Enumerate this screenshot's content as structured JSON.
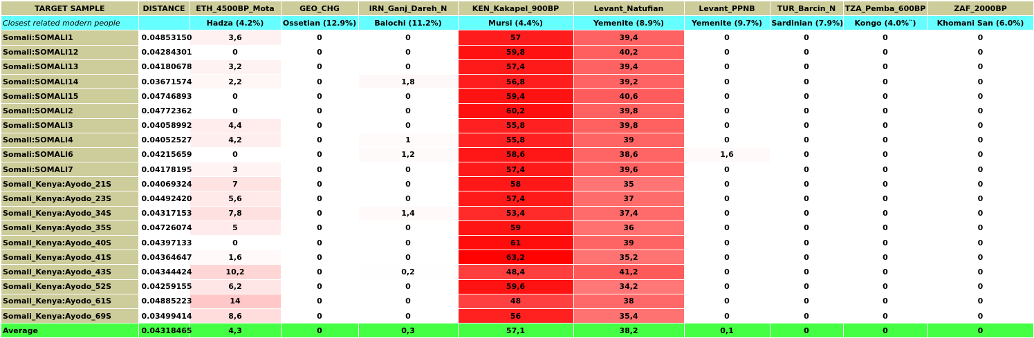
{
  "chart_data": {
    "type": "table",
    "columns": [
      "TARGET SAMPLE",
      "DISTANCE",
      "ETH_4500BP_Mota",
      "GEO_CHG",
      "IRN_Ganj_Dareh_N",
      "KEN_Kakapel_900BP",
      "Levant_Natufian",
      "Levant_PPNB",
      "TUR_Barcin_N",
      "TZA_Pemba_600BP",
      "ZAF_2000BP"
    ],
    "closest_label": "Closest related modern people",
    "closest": [
      "Hadza (4.2%)",
      "Ossetian (12.9%)",
      "Balochi (11.2%)",
      "Mursi (4.4%)",
      "Yemenite (8.9%)",
      "Yemenite (9.7%)",
      "Sardinian (7.9%)",
      "Kongo (4.0%¨)",
      "Khomani San (6.0%)"
    ],
    "rows": [
      {
        "sample": "Somali:SOMALI1",
        "distance": "0.04853150",
        "values": [
          "3,6",
          "0",
          "0",
          "57",
          "39,4",
          "0",
          "0",
          "0",
          "0"
        ]
      },
      {
        "sample": "Somali:SOMALI12",
        "distance": "0.04284301",
        "values": [
          "0",
          "0",
          "0",
          "59,8",
          "40,2",
          "0",
          "0",
          "0",
          "0"
        ]
      },
      {
        "sample": "Somali:SOMALI13",
        "distance": "0.04180678",
        "values": [
          "3,2",
          "0",
          "0",
          "57,4",
          "39,4",
          "0",
          "0",
          "0",
          "0"
        ]
      },
      {
        "sample": "Somali:SOMALI14",
        "distance": "0.03671574",
        "values": [
          "2,2",
          "0",
          "1,8",
          "56,8",
          "39,2",
          "0",
          "0",
          "0",
          "0"
        ]
      },
      {
        "sample": "Somali:SOMALI15",
        "distance": "0.04746893",
        "values": [
          "0",
          "0",
          "0",
          "59,4",
          "40,6",
          "0",
          "0",
          "0",
          "0"
        ]
      },
      {
        "sample": "Somali:SOMALI2",
        "distance": "0.04772362",
        "values": [
          "0",
          "0",
          "0",
          "60,2",
          "39,8",
          "0",
          "0",
          "0",
          "0"
        ]
      },
      {
        "sample": "Somali:SOMALI3",
        "distance": "0.04058992",
        "values": [
          "4,4",
          "0",
          "0",
          "55,8",
          "39,8",
          "0",
          "0",
          "0",
          "0"
        ]
      },
      {
        "sample": "Somali:SOMALI4",
        "distance": "0.04052527",
        "values": [
          "4,2",
          "0",
          "1",
          "55,8",
          "39",
          "0",
          "0",
          "0",
          "0"
        ]
      },
      {
        "sample": "Somali:SOMALI6",
        "distance": "0.04215659",
        "values": [
          "0",
          "0",
          "1,2",
          "58,6",
          "38,6",
          "1,6",
          "0",
          "0",
          "0"
        ]
      },
      {
        "sample": "Somali:SOMALI7",
        "distance": "0.04178195",
        "values": [
          "3",
          "0",
          "0",
          "57,4",
          "39,6",
          "0",
          "0",
          "0",
          "0"
        ]
      },
      {
        "sample": "Somali_Kenya:Ayodo_21S",
        "distance": "0.04069324",
        "values": [
          "7",
          "0",
          "0",
          "58",
          "35",
          "0",
          "0",
          "0",
          "0"
        ]
      },
      {
        "sample": "Somali_Kenya:Ayodo_23S",
        "distance": "0.04492420",
        "values": [
          "5,6",
          "0",
          "0",
          "57,4",
          "37",
          "0",
          "0",
          "0",
          "0"
        ]
      },
      {
        "sample": "Somali_Kenya:Ayodo_34S",
        "distance": "0.04317153",
        "values": [
          "7,8",
          "0",
          "1,4",
          "53,4",
          "37,4",
          "0",
          "0",
          "0",
          "0"
        ]
      },
      {
        "sample": "Somali_Kenya:Ayodo_35S",
        "distance": "0.04726074",
        "values": [
          "5",
          "0",
          "0",
          "59",
          "36",
          "0",
          "0",
          "0",
          "0"
        ]
      },
      {
        "sample": "Somali_Kenya:Ayodo_40S",
        "distance": "0.04397133",
        "values": [
          "0",
          "0",
          "0",
          "61",
          "39",
          "0",
          "0",
          "0",
          "0"
        ]
      },
      {
        "sample": "Somali_Kenya:Ayodo_41S",
        "distance": "0.04364647",
        "values": [
          "1,6",
          "0",
          "0",
          "63,2",
          "35,2",
          "0",
          "0",
          "0",
          "0"
        ]
      },
      {
        "sample": "Somali_Kenya:Ayodo_43S",
        "distance": "0.04344424",
        "values": [
          "10,2",
          "0",
          "0,2",
          "48,4",
          "41,2",
          "0",
          "0",
          "0",
          "0"
        ]
      },
      {
        "sample": "Somali_Kenya:Ayodo_52S",
        "distance": "0.04259155",
        "values": [
          "6,2",
          "0",
          "0",
          "59,6",
          "34,2",
          "0",
          "0",
          "0",
          "0"
        ]
      },
      {
        "sample": "Somali_Kenya:Ayodo_61S",
        "distance": "0.04885223",
        "values": [
          "14",
          "0",
          "0",
          "48",
          "38",
          "0",
          "0",
          "0",
          "0"
        ]
      },
      {
        "sample": "Somali_Kenya:Ayodo_69S",
        "distance": "0.03499414",
        "values": [
          "8,6",
          "0",
          "0",
          "56",
          "35,4",
          "0",
          "0",
          "0",
          "0"
        ]
      }
    ],
    "average": {
      "label": "Average",
      "distance": "0.04318465",
      "values": [
        "4,3",
        "0",
        "0,3",
        "57,1",
        "38,2",
        "0,1",
        "0",
        "0",
        "0"
      ]
    },
    "colors": {
      "header_bg": "#cdcc9b",
      "closest_row_bg": "#66ffff",
      "sample_col_bg": "#cdcc9b",
      "average_row_bg": "#44ff44",
      "heat_max": "#ff0000",
      "heat_min": "#ffffff"
    }
  }
}
